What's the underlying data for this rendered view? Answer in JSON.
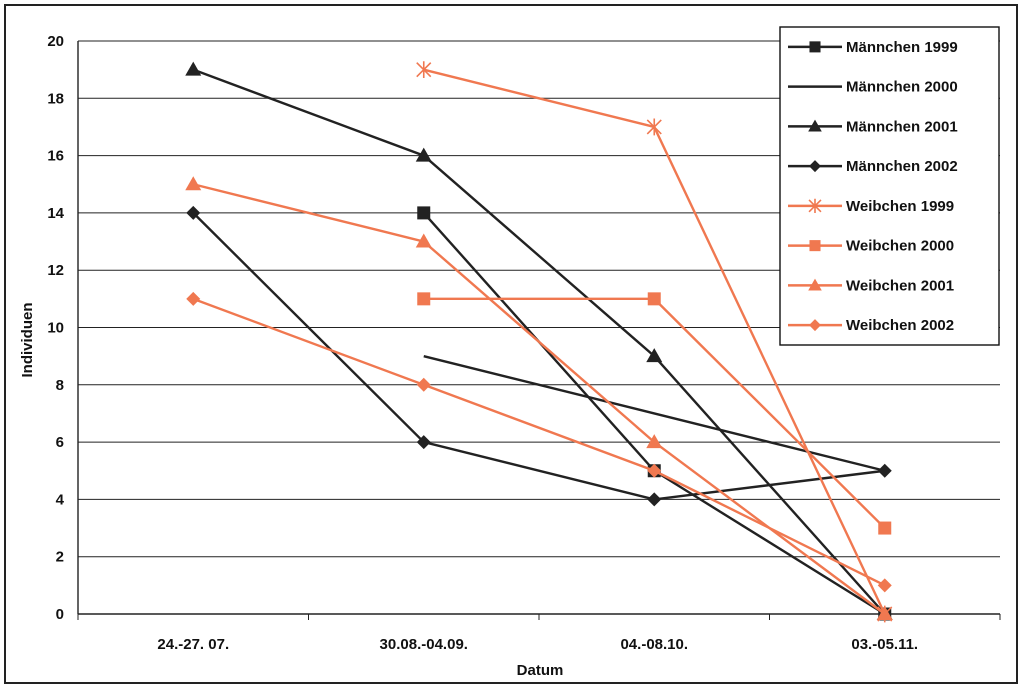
{
  "chart_data": {
    "type": "line",
    "xlabel": "Datum",
    "ylabel": "Individuen",
    "ylim": [
      0,
      20
    ],
    "yticks": [
      "0",
      "2",
      "4",
      "6",
      "8",
      "10",
      "12",
      "14",
      "16",
      "18",
      "20"
    ],
    "categories": [
      "24.-27. 07.",
      "30.08.-04.09.",
      "04.-08.10.",
      "03.-05.11."
    ],
    "grid": "horizontal",
    "legend_position": "top-right",
    "series": [
      {
        "name": "Männchen 1999",
        "values": [
          null,
          14,
          5,
          0
        ],
        "color": "#222222",
        "marker": "square"
      },
      {
        "name": "Männchen 2000",
        "values": [
          null,
          9,
          7,
          5
        ],
        "color": "#222222",
        "marker": "none"
      },
      {
        "name": "Männchen 2001",
        "values": [
          19,
          16,
          9,
          0
        ],
        "color": "#222222",
        "marker": "triangle"
      },
      {
        "name": "Männchen 2002",
        "values": [
          14,
          6,
          4,
          5
        ],
        "color": "#222222",
        "marker": "diamond"
      },
      {
        "name": "Weibchen 1999",
        "values": [
          null,
          19,
          17,
          0
        ],
        "color": "#f07850",
        "marker": "star"
      },
      {
        "name": "Weibchen 2000",
        "values": [
          null,
          11,
          11,
          3
        ],
        "color": "#f07850",
        "marker": "square"
      },
      {
        "name": "Weibchen 2001",
        "values": [
          15,
          13,
          6,
          0
        ],
        "color": "#f07850",
        "marker": "triangle"
      },
      {
        "name": "Weibchen 2002",
        "values": [
          11,
          8,
          5,
          1
        ],
        "color": "#f07850",
        "marker": "diamond"
      }
    ]
  }
}
